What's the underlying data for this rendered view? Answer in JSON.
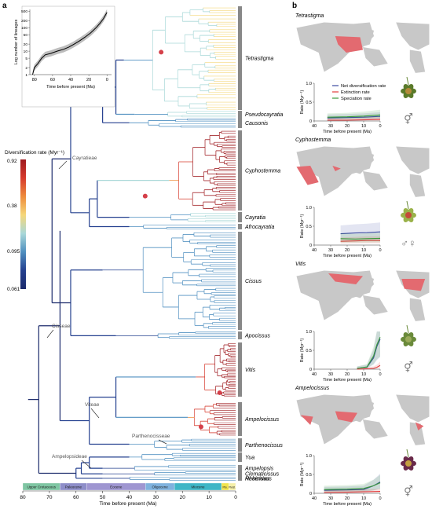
{
  "panel_a": {
    "letter": "a",
    "legend": {
      "title": "Diversification rate (Myr⁻¹)",
      "ticks": [
        "0.92",
        "0.38",
        "0.095",
        "0.061"
      ],
      "colors": [
        "#9e1a1f",
        "#d63a2c",
        "#ee8c3c",
        "#f5d77a",
        "#a9d8d8",
        "#4f8fc0",
        "#24408f",
        "#1b2a6b"
      ]
    },
    "genera": [
      {
        "name": "Tetrastigma",
        "size": "large"
      },
      {
        "name": "Pseudocayratia",
        "size": "small"
      },
      {
        "name": "Causonis",
        "size": "small"
      },
      {
        "name": "Cyphostemma",
        "size": "large"
      },
      {
        "name": "Cayratia",
        "size": "small"
      },
      {
        "name": "Afrocayratia",
        "size": "small"
      },
      {
        "name": "Cissus",
        "size": "large"
      },
      {
        "name": "Apocissus",
        "size": "small"
      },
      {
        "name": "Vitis",
        "size": "large"
      },
      {
        "name": "Ampelocissus",
        "size": "large"
      },
      {
        "name": "Parthenocissus",
        "size": "small"
      },
      {
        "name": "Yua",
        "size": "small"
      },
      {
        "name": "Ampelopsis",
        "size": "small"
      },
      {
        "name": "Clematicissus",
        "size": "small"
      },
      {
        "name": "Rhoicissus",
        "size": "small"
      },
      {
        "name": "Nekemias",
        "size": "small"
      }
    ],
    "tribes": [
      "Cayratieae",
      "Cisseae",
      "Viteae",
      "Parthenocisseae",
      "Ampelopsideae"
    ],
    "epochs": [
      {
        "name": "Upper Cretaceous",
        "start": 80,
        "end": 66,
        "color": "#7fc6a3"
      },
      {
        "name": "Paleocene",
        "start": 66,
        "end": 56,
        "color": "#8e8ec9"
      },
      {
        "name": "Eocene",
        "start": 56,
        "end": 33.9,
        "color": "#9f96d1"
      },
      {
        "name": "Oligocene",
        "start": 33.9,
        "end": 23,
        "color": "#7fb2de"
      },
      {
        "name": "Miocene",
        "start": 23,
        "end": 5.3,
        "color": "#3fb6c6"
      },
      {
        "name": "Plio.",
        "start": 5.3,
        "end": 2.6,
        "color": "#f0e34e"
      },
      {
        "name": "Pleist.",
        "start": 2.6,
        "end": 0,
        "color": "#f5efa8"
      }
    ],
    "xaxis": {
      "label": "Time before present (Ma)",
      "ticks": [
        "80",
        "70",
        "60",
        "50",
        "40",
        "30",
        "20",
        "10",
        "0"
      ]
    }
  },
  "chart_data": [
    {
      "type": "line",
      "title": "",
      "xlabel": "Time before present (Ma)",
      "ylabel": "Log number of lineages",
      "xlim": [
        85,
        -5
      ],
      "yticks": [
        "1",
        "2",
        "5",
        "10",
        "20",
        "50",
        "100",
        "200",
        "500"
      ],
      "xticks": [
        "80",
        "60",
        "40",
        "20",
        "0"
      ],
      "series": [
        {
          "values": [
            [
              82,
              1
            ],
            [
              80,
              2
            ],
            [
              76,
              3
            ],
            [
              72,
              5
            ],
            [
              68,
              7
            ],
            [
              62,
              8
            ],
            [
              55,
              10
            ],
            [
              48,
              12
            ],
            [
              42,
              15
            ],
            [
              36,
              20
            ],
            [
              30,
              28
            ],
            [
              24,
              40
            ],
            [
              18,
              60
            ],
            [
              12,
              100
            ],
            [
              8,
              150
            ],
            [
              4,
              240
            ],
            [
              0,
              450
            ]
          ]
        }
      ]
    },
    {
      "type": "line",
      "title": "Tetrastigma",
      "xlabel": "Time before present (Ma)",
      "ylabel": "Rate (Myr⁻¹)",
      "xlim": [
        40,
        0
      ],
      "ylim": [
        0,
        1.0
      ],
      "legend": [
        "Net diversification rate",
        "Extinction rate",
        "Speciation rate"
      ],
      "series": [
        {
          "name": "Net diversification rate",
          "color": "#3a4aa0",
          "values": [
            [
              32,
              0.08
            ],
            [
              20,
              0.09
            ],
            [
              10,
              0.1
            ],
            [
              0,
              0.12
            ]
          ]
        },
        {
          "name": "Extinction rate",
          "color": "#e23c3c",
          "values": [
            [
              32,
              0.02
            ],
            [
              20,
              0.02
            ],
            [
              10,
              0.03
            ],
            [
              0,
              0.04
            ]
          ]
        },
        {
          "name": "Speciation rate",
          "color": "#3a9a3a",
          "values": [
            [
              32,
              0.1
            ],
            [
              20,
              0.11
            ],
            [
              10,
              0.13
            ],
            [
              0,
              0.16
            ]
          ]
        }
      ]
    },
    {
      "type": "line",
      "title": "Cyphostemma",
      "xlabel": "Time before present (Ma)",
      "ylabel": "Rate (Myr⁻¹)",
      "xlim": [
        40,
        0
      ],
      "ylim": [
        0,
        1.0
      ],
      "series": [
        {
          "name": "Net diversification rate",
          "color": "#3a4aa0",
          "values": [
            [
              24,
              0.3
            ],
            [
              15,
              0.32
            ],
            [
              8,
              0.33
            ],
            [
              0,
              0.35
            ]
          ]
        },
        {
          "name": "Extinction rate",
          "color": "#e23c3c",
          "values": [
            [
              24,
              0.1
            ],
            [
              15,
              0.11
            ],
            [
              8,
              0.12
            ],
            [
              0,
              0.12
            ]
          ]
        },
        {
          "name": "Speciation rate",
          "color": "#3a9a3a",
          "values": [
            [
              24,
              0.17
            ],
            [
              15,
              0.16
            ],
            [
              8,
              0.17
            ],
            [
              0,
              0.18
            ]
          ]
        }
      ]
    },
    {
      "type": "line",
      "title": "Vitis",
      "xlabel": "Time before present (Ma)",
      "ylabel": "Rate (Myr⁻¹)",
      "xlim": [
        40,
        0
      ],
      "ylim": [
        0,
        1.0
      ],
      "series": [
        {
          "name": "Net diversification rate",
          "color": "#3a4aa0",
          "values": [
            [
              14,
              0.02
            ],
            [
              8,
              0.05
            ],
            [
              4,
              0.3
            ],
            [
              2,
              0.6
            ],
            [
              0,
              0.8
            ]
          ]
        },
        {
          "name": "Extinction rate",
          "color": "#e23c3c",
          "values": [
            [
              14,
              0.0
            ],
            [
              8,
              0.01
            ],
            [
              4,
              0.02
            ],
            [
              2,
              0.05
            ],
            [
              0,
              0.1
            ]
          ]
        },
        {
          "name": "Speciation rate",
          "color": "#3a9a3a",
          "values": [
            [
              14,
              0.02
            ],
            [
              8,
              0.06
            ],
            [
              4,
              0.35
            ],
            [
              2,
              0.65
            ],
            [
              0,
              0.85
            ]
          ]
        }
      ]
    },
    {
      "type": "line",
      "title": "Ampelocissus",
      "xlabel": "Time before present (Ma)",
      "ylabel": "Rate (Myr⁻¹)",
      "xlim": [
        40,
        0
      ],
      "ylim": [
        0,
        1.0
      ],
      "series": [
        {
          "name": "Net diversification rate",
          "color": "#3a4aa0",
          "values": [
            [
              34,
              0.08
            ],
            [
              20,
              0.09
            ],
            [
              10,
              0.1
            ],
            [
              4,
              0.2
            ],
            [
              0,
              0.3
            ]
          ]
        },
        {
          "name": "Extinction rate",
          "color": "#e23c3c",
          "values": [
            [
              34,
              0.02
            ],
            [
              20,
              0.03
            ],
            [
              10,
              0.04
            ],
            [
              0,
              0.05
            ]
          ]
        },
        {
          "name": "Speciation rate",
          "color": "#3a9a3a",
          "values": [
            [
              34,
              0.1
            ],
            [
              20,
              0.11
            ],
            [
              10,
              0.13
            ],
            [
              4,
              0.2
            ],
            [
              0,
              0.28
            ]
          ]
        }
      ]
    }
  ],
  "panel_b": {
    "letter": "b",
    "rate_ticks_y": [
      "0",
      "0.5",
      "1.0"
    ],
    "rate_ticks_x": [
      "40",
      "30",
      "20",
      "10",
      "0"
    ],
    "xaxis_label": "Time before present (Ma)",
    "yaxis_label": "Rate (Myr⁻¹)",
    "sex_symbols": [
      "⚥",
      "♂♀",
      "⚥",
      "⚥"
    ]
  }
}
